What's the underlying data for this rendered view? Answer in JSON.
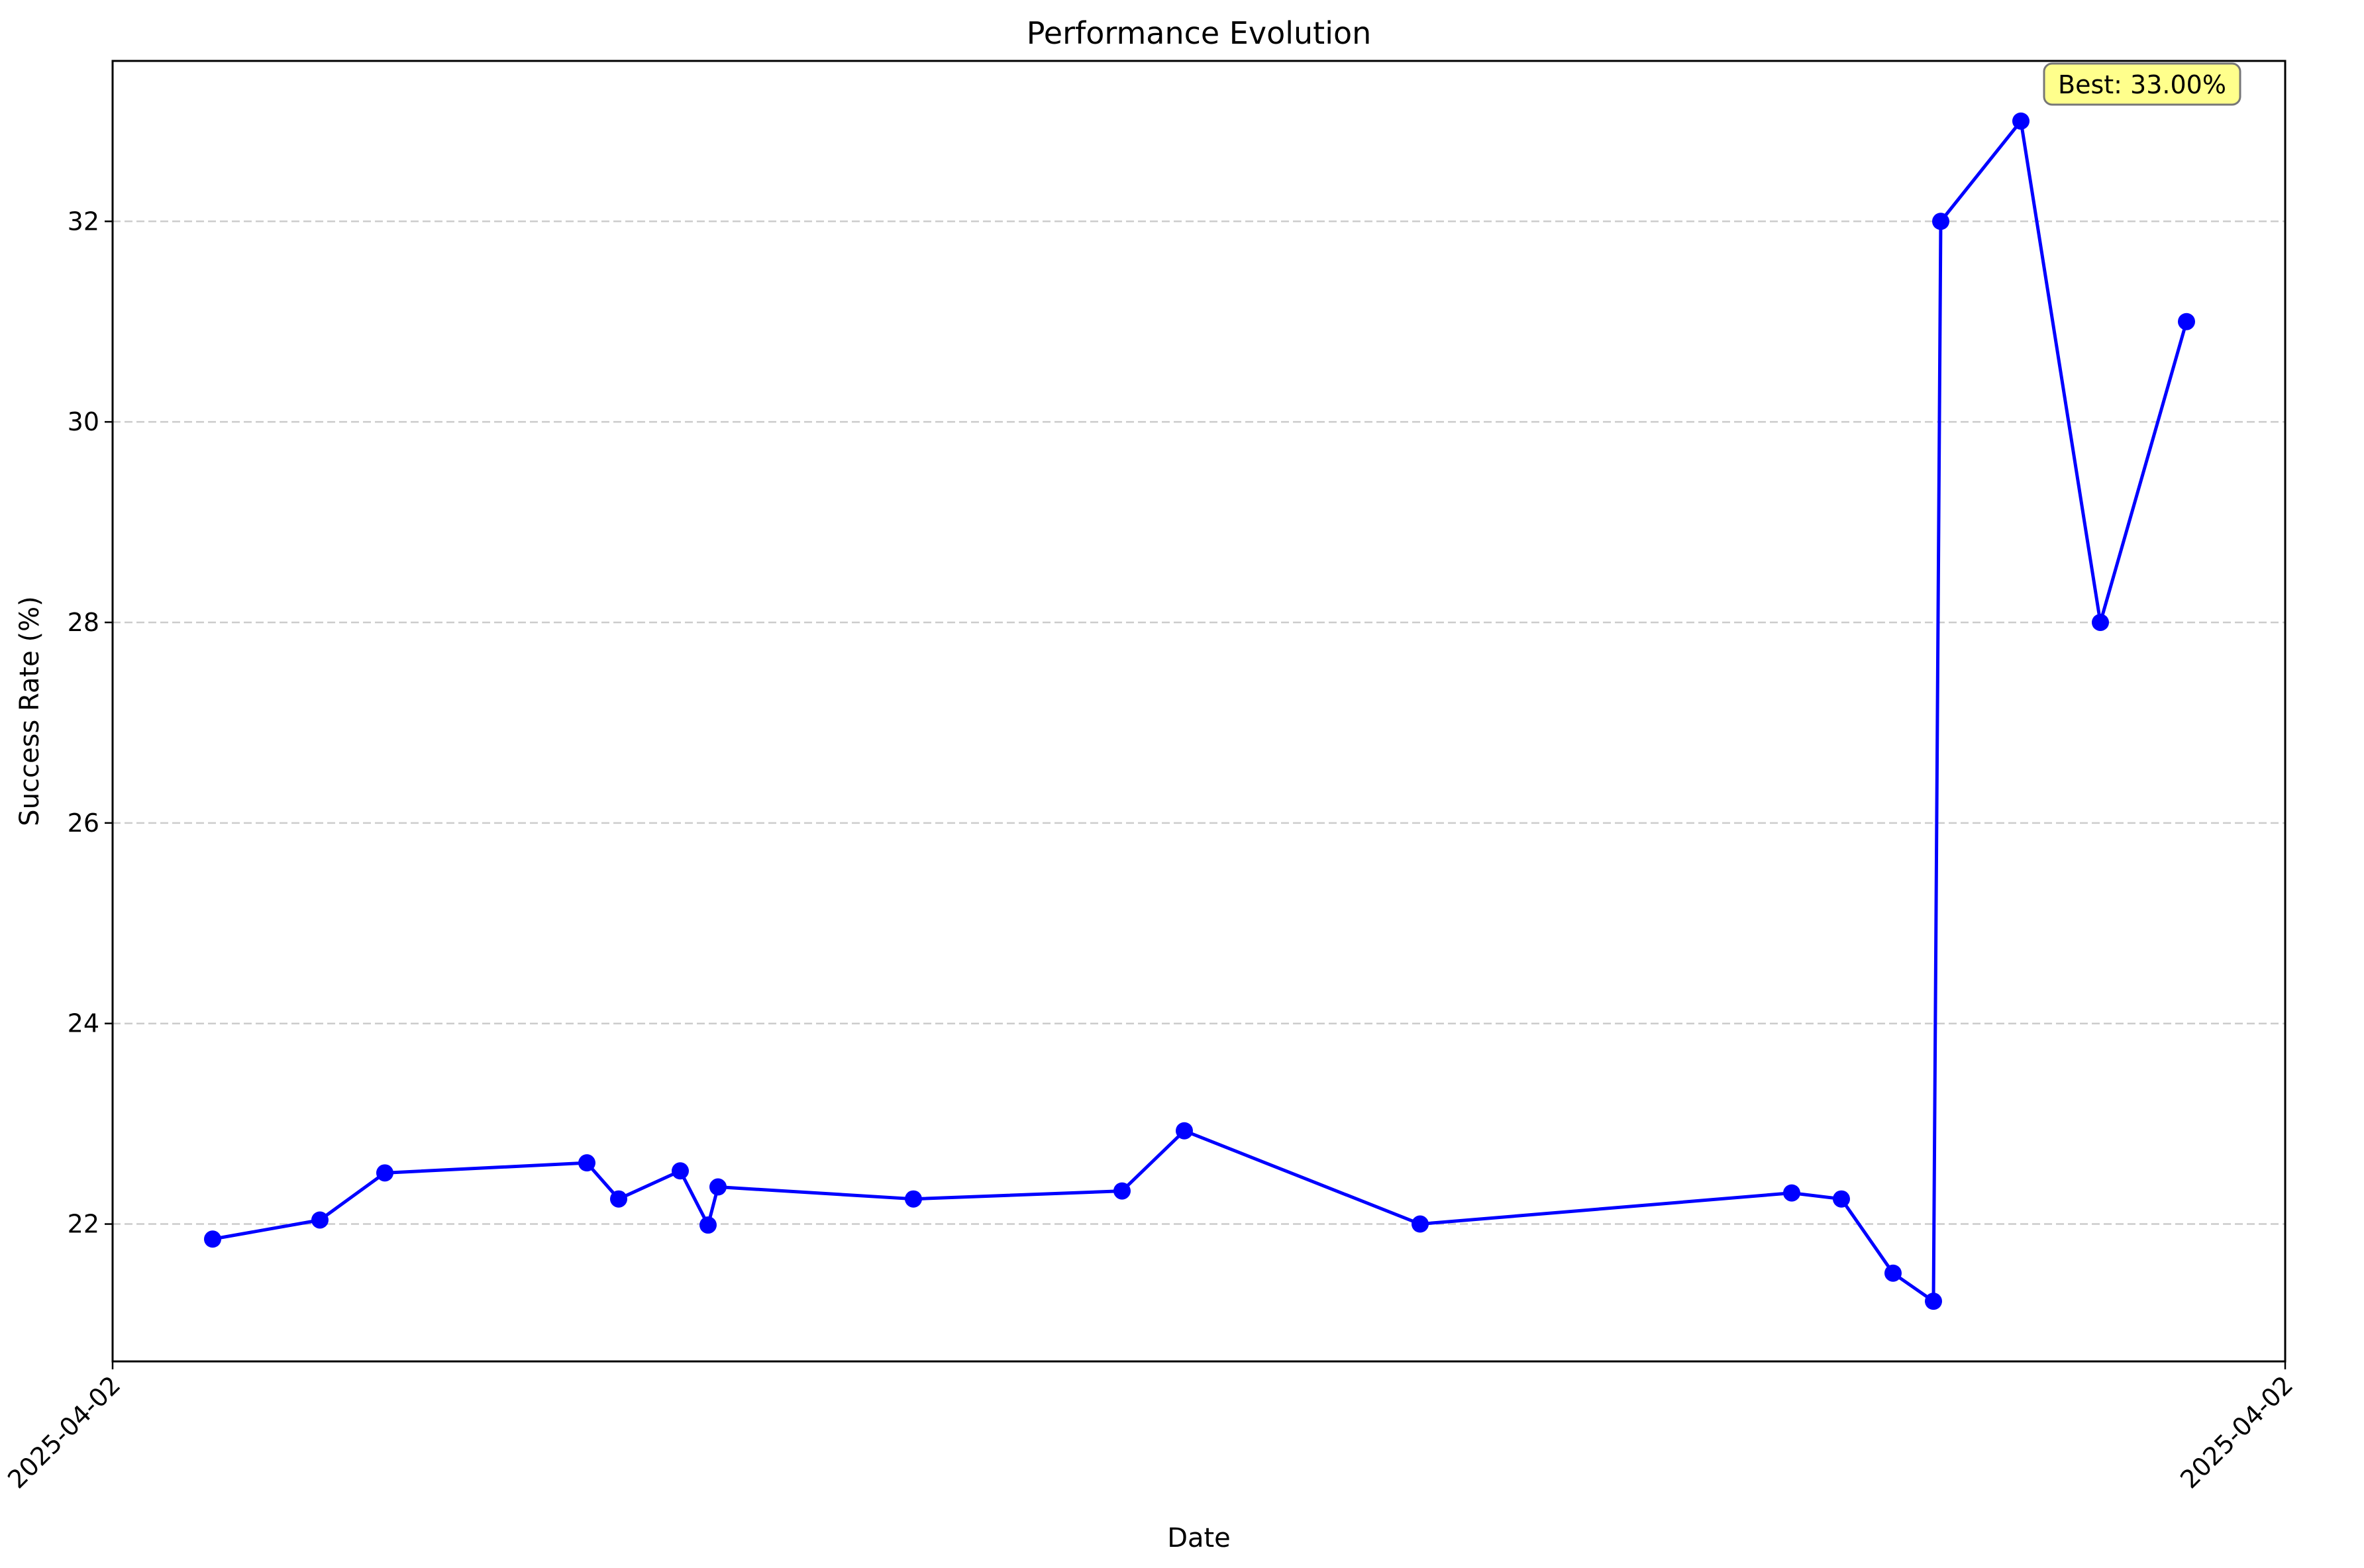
{
  "chart_data": {
    "type": "line",
    "title": "Performance Evolution",
    "xlabel": "Date",
    "ylabel": "Success Rate (%)",
    "x_tick_labels": [
      "2025-04-02",
      "2025-04-02"
    ],
    "y_ticks": [
      22,
      24,
      26,
      28,
      30,
      32
    ],
    "ylim": [
      20.63,
      33.6
    ],
    "grid": "y-dashed",
    "series": [
      {
        "color": "#0000ff",
        "marker": "circle",
        "values": [
          21.85,
          22.04,
          22.51,
          22.61,
          22.25,
          22.53,
          21.99,
          22.37,
          22.25,
          22.33,
          22.93,
          22.0,
          22.31,
          22.25,
          21.51,
          21.23,
          32.0,
          33.0,
          28.0,
          31.0
        ]
      }
    ],
    "annotation": {
      "text": "Best: 33.00%",
      "background": "#ffff80"
    }
  }
}
